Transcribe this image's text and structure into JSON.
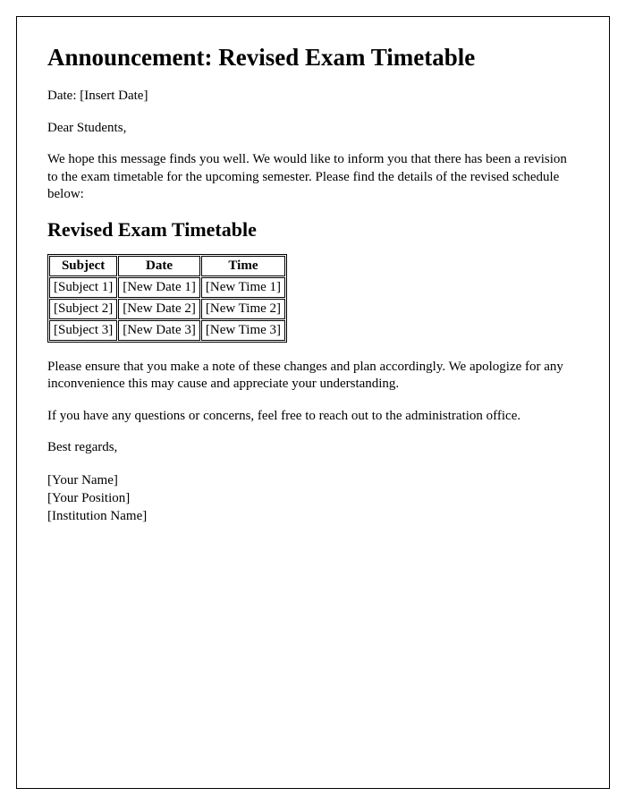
{
  "heading": "Announcement: Revised Exam Timetable",
  "date_line": "Date: [Insert Date]",
  "salutation": "Dear Students,",
  "intro_paragraph": "We hope this message finds you well. We would like to inform you that there has been a revision to the exam timetable for the upcoming semester. Please find the details of the revised schedule below:",
  "subheading": "Revised Exam Timetable",
  "table": {
    "columns": [
      "Subject",
      "Date",
      "Time"
    ],
    "rows": [
      [
        "[Subject 1]",
        "[New Date 1]",
        "[New Time 1]"
      ],
      [
        "[Subject 2]",
        "[New Date 2]",
        "[New Time 2]"
      ],
      [
        "[Subject 3]",
        "[New Date 3]",
        "[New Time 3]"
      ]
    ]
  },
  "note_paragraph": "Please ensure that you make a note of these changes and plan accordingly. We apologize for any inconvenience this may cause and appreciate your understanding.",
  "contact_paragraph": "If you have any questions or concerns, feel free to reach out to the administration office.",
  "closing": "Best regards,",
  "signature": {
    "name": "[Your Name]",
    "position": "[Your Position]",
    "institution": "[Institution Name]"
  }
}
